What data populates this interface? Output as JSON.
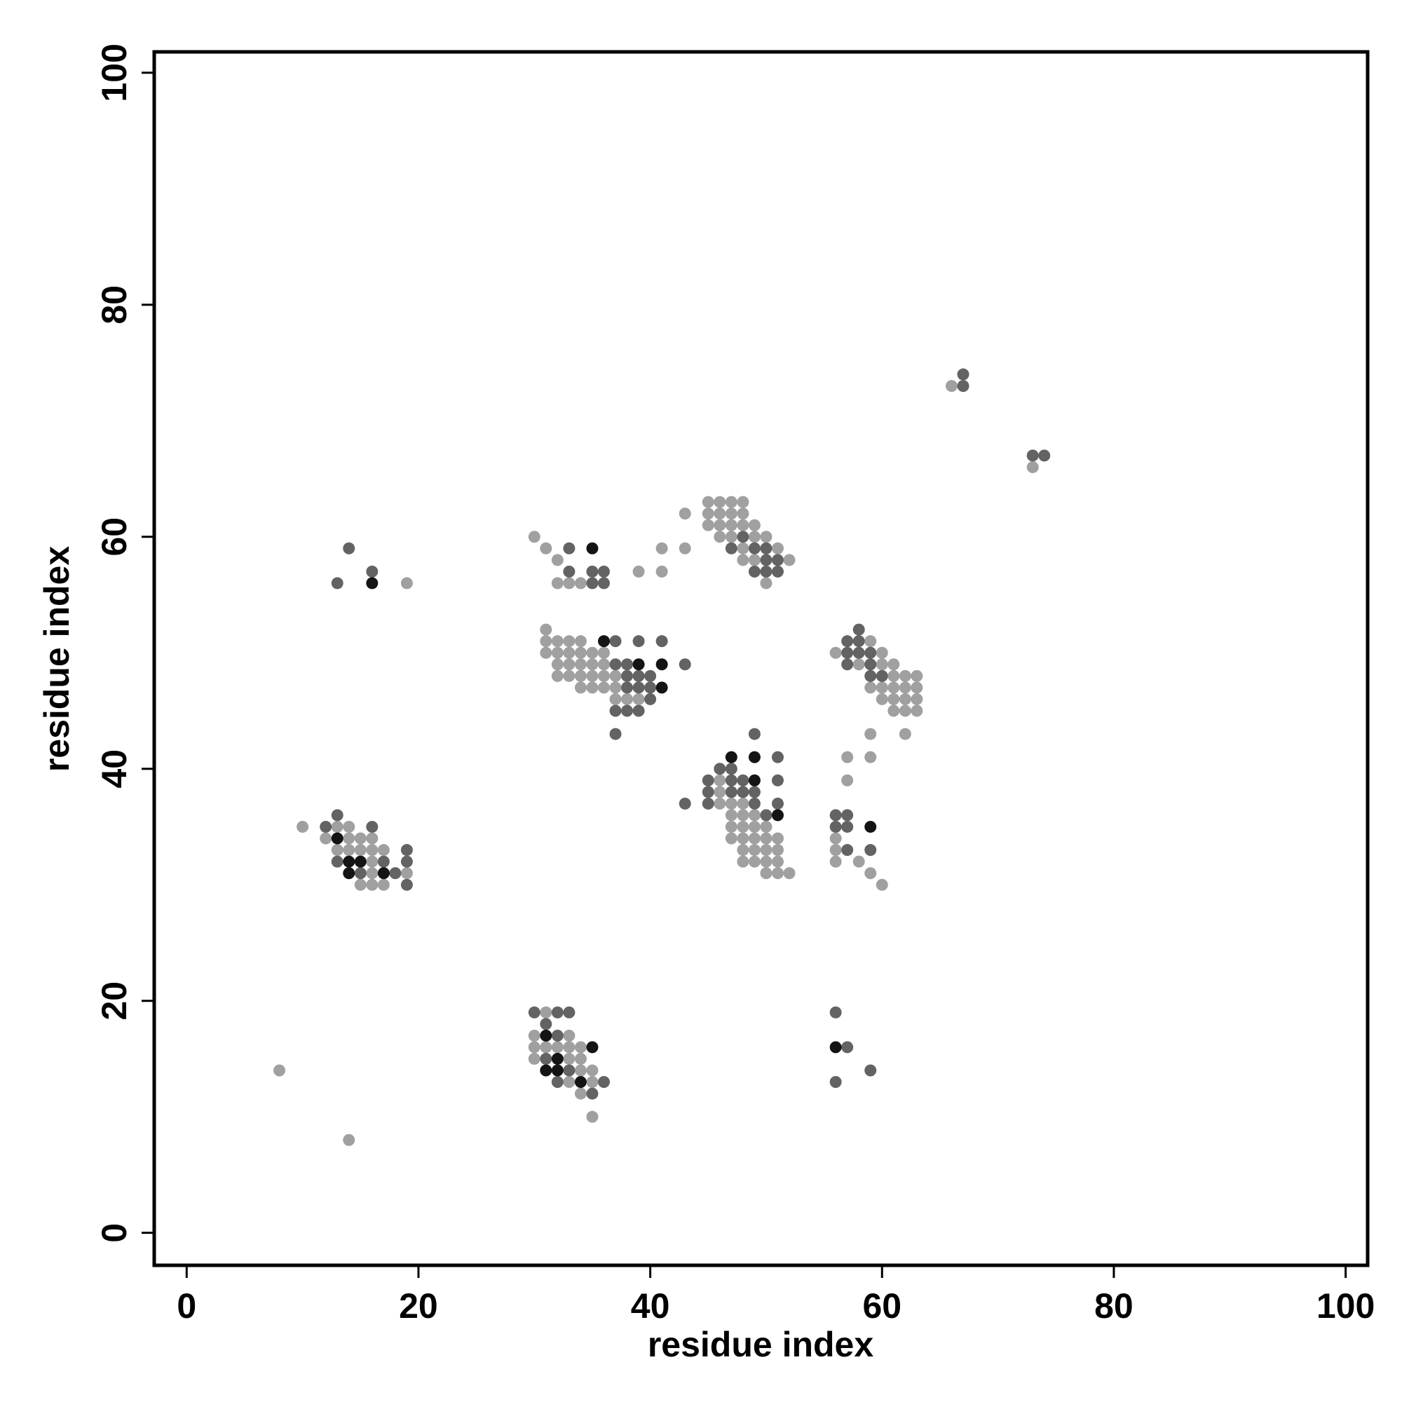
{
  "chart_data": {
    "type": "scatter",
    "x_label": "residue index",
    "y_label": "residue index",
    "xlim": [
      -2.8,
      101.9
    ],
    "ylim": [
      -2.8,
      101.8
    ],
    "xticks": [
      0,
      20,
      40,
      60,
      80,
      100
    ],
    "yticks": [
      0,
      20,
      40,
      60,
      80,
      100
    ],
    "series": [
      {
        "color": "#a0a0a0",
        "x": [
          8,
          14,
          10,
          19,
          66,
          73,
          13,
          14,
          12,
          14,
          15,
          16,
          13,
          14,
          15,
          16,
          17,
          16,
          16,
          19,
          15,
          16,
          17,
          31,
          30,
          33,
          30,
          31,
          32,
          33,
          34,
          30,
          33,
          34,
          34,
          35,
          33,
          35,
          34,
          35,
          30,
          31,
          32,
          32,
          33,
          34,
          39,
          41,
          41,
          43,
          43,
          45,
          46,
          47,
          48,
          45,
          46,
          47,
          48,
          45,
          46,
          47,
          48,
          49,
          46,
          47,
          49,
          50,
          48,
          51,
          48,
          49,
          52,
          50,
          31,
          31,
          32,
          33,
          34,
          31,
          32,
          33,
          34,
          35,
          36,
          32,
          33,
          34,
          35,
          36,
          32,
          33,
          34,
          35,
          36,
          37,
          34,
          35,
          36,
          37,
          37,
          38,
          39,
          59,
          56,
          60,
          58,
          60,
          61,
          61,
          62,
          63,
          59,
          60,
          61,
          62,
          63,
          60,
          61,
          62,
          63,
          61,
          62,
          63,
          59,
          62,
          57,
          59,
          57,
          46,
          46,
          46,
          47,
          48,
          47,
          48,
          49,
          47,
          48,
          49,
          50,
          47,
          48,
          49,
          50,
          51,
          48,
          49,
          50,
          51,
          48,
          49,
          50,
          51,
          50,
          51,
          52,
          56,
          56,
          56,
          58,
          59,
          60
        ],
        "values": [
          14,
          8,
          35,
          56,
          73,
          66,
          35,
          35,
          34,
          34,
          34,
          34,
          33,
          33,
          33,
          33,
          33,
          32,
          31,
          31,
          30,
          30,
          30,
          19,
          17,
          17,
          16,
          16,
          16,
          16,
          16,
          15,
          15,
          15,
          14,
          14,
          13,
          13,
          12,
          10,
          60,
          59,
          58,
          56,
          56,
          56,
          57,
          57,
          59,
          59,
          62,
          63,
          63,
          63,
          63,
          62,
          62,
          62,
          62,
          61,
          61,
          61,
          61,
          61,
          60,
          60,
          60,
          60,
          59,
          59,
          58,
          58,
          58,
          56,
          52,
          51,
          51,
          51,
          51,
          50,
          50,
          50,
          50,
          50,
          50,
          49,
          49,
          49,
          49,
          49,
          48,
          48,
          48,
          48,
          48,
          48,
          47,
          47,
          47,
          47,
          46,
          46,
          46,
          51,
          50,
          50,
          49,
          49,
          49,
          48,
          48,
          48,
          47,
          47,
          47,
          47,
          47,
          46,
          46,
          46,
          46,
          45,
          45,
          45,
          43,
          43,
          41,
          41,
          39,
          39,
          38,
          37,
          37,
          37,
          36,
          36,
          36,
          35,
          35,
          35,
          35,
          34,
          34,
          34,
          34,
          34,
          33,
          33,
          33,
          33,
          32,
          32,
          32,
          32,
          31,
          31,
          31,
          34,
          33,
          32,
          32,
          31,
          30
        ]
      },
      {
        "color": "#636363",
        "x": [
          14,
          13,
          16,
          67,
          67,
          73,
          74,
          13,
          12,
          16,
          19,
          13,
          17,
          19,
          15,
          18,
          19,
          30,
          32,
          33,
          31,
          32,
          31,
          33,
          32,
          36,
          35,
          56,
          57,
          59,
          56,
          33,
          33,
          35,
          36,
          35,
          36,
          48,
          47,
          49,
          50,
          50,
          51,
          49,
          50,
          51,
          37,
          39,
          41,
          37,
          38,
          43,
          38,
          39,
          40,
          38,
          39,
          40,
          40,
          37,
          38,
          39,
          37,
          58,
          57,
          58,
          57,
          58,
          59,
          57,
          59,
          59,
          60,
          49,
          51,
          46,
          47,
          45,
          47,
          48,
          51,
          45,
          47,
          48,
          49,
          43,
          45,
          49,
          51,
          50,
          56,
          57,
          56,
          57,
          57,
          59
        ],
        "values": [
          59,
          56,
          57,
          74,
          73,
          67,
          67,
          36,
          35,
          35,
          33,
          32,
          32,
          32,
          31,
          31,
          30,
          19,
          19,
          19,
          18,
          17,
          15,
          14,
          13,
          13,
          12,
          19,
          16,
          14,
          13,
          59,
          57,
          57,
          57,
          56,
          56,
          60,
          59,
          59,
          59,
          58,
          58,
          57,
          57,
          57,
          51,
          51,
          51,
          49,
          49,
          49,
          48,
          48,
          48,
          47,
          47,
          47,
          46,
          45,
          45,
          45,
          43,
          52,
          51,
          51,
          50,
          50,
          50,
          49,
          49,
          48,
          48,
          43,
          41,
          40,
          40,
          39,
          39,
          39,
          39,
          38,
          38,
          38,
          38,
          37,
          37,
          37,
          37,
          36,
          36,
          36,
          35,
          35,
          33,
          33
        ]
      },
      {
        "color": "#141414",
        "x": [
          16,
          13,
          14,
          15,
          14,
          17,
          31,
          35,
          32,
          31,
          32,
          34,
          56,
          35,
          36,
          39,
          41,
          41,
          47,
          49,
          49,
          51,
          59
        ],
        "values": [
          56,
          34,
          32,
          32,
          31,
          31,
          17,
          16,
          15,
          14,
          14,
          13,
          16,
          59,
          51,
          49,
          49,
          47,
          41,
          41,
          39,
          36,
          35
        ]
      }
    ]
  }
}
